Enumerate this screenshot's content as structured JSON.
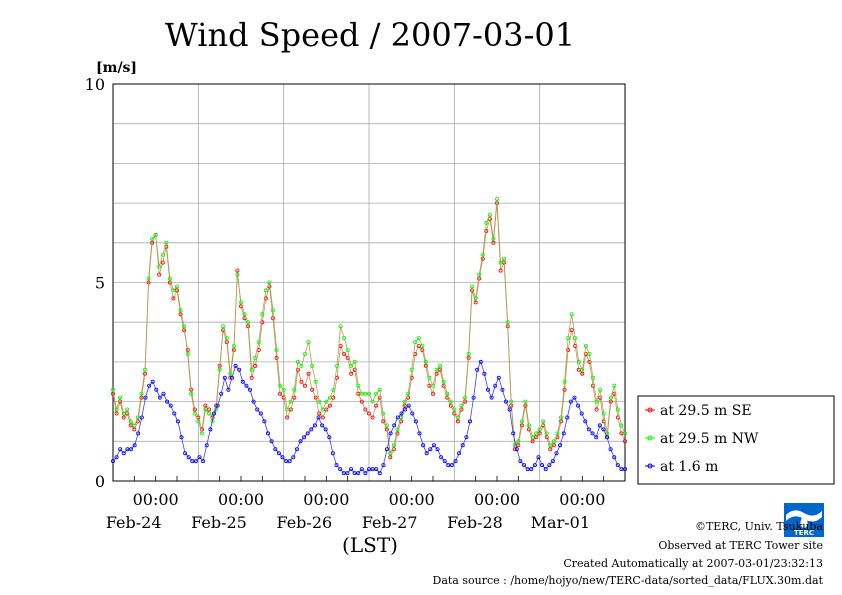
{
  "chart_data": {
    "type": "line",
    "title": "Wind Speed / 2007-03-01",
    "y_unit": "[m/s]",
    "xlabel": "(LST)",
    "ylim": [
      0,
      10
    ],
    "y_ticks": [
      0,
      5,
      10
    ],
    "xlim_hours": [
      0,
      144
    ],
    "x_ticks": [
      {
        "top": "00:00",
        "bottom": "Feb-24"
      },
      {
        "top": "00:00",
        "bottom": "Feb-25"
      },
      {
        "top": "00:00",
        "bottom": "Feb-26"
      },
      {
        "top": "00:00",
        "bottom": "Feb-27"
      },
      {
        "top": "00:00",
        "bottom": "Feb-28"
      },
      {
        "top": "00:00",
        "bottom": "Mar-01"
      }
    ],
    "grid": true,
    "legend_position": "right",
    "series": [
      {
        "name": "at 29.5 m SE",
        "color": "#ff0000",
        "values": [
          2.2,
          1.7,
          2.0,
          1.6,
          1.7,
          1.4,
          1.3,
          1.5,
          2.1,
          2.7,
          5.0,
          6.0,
          6.2,
          5.2,
          5.5,
          5.9,
          5.0,
          4.6,
          4.8,
          4.2,
          3.8,
          3.3,
          2.3,
          1.8,
          1.6,
          1.3,
          1.9,
          1.8,
          1.6,
          1.9,
          2.9,
          3.8,
          3.5,
          2.6,
          3.3,
          5.3,
          4.4,
          4.1,
          3.9,
          2.6,
          2.9,
          3.3,
          4.0,
          4.6,
          4.9,
          4.1,
          3.1,
          2.2,
          2.1,
          1.6,
          1.8,
          2.1,
          2.8,
          2.5,
          2.4,
          2.7,
          2.3,
          2.1,
          1.7,
          1.6,
          1.8,
          1.9,
          2.1,
          2.6,
          3.4,
          3.2,
          3.1,
          2.7,
          2.8,
          2.2,
          2.0,
          1.8,
          1.7,
          1.6,
          1.9,
          2.1,
          1.5,
          1.3,
          0.6,
          0.8,
          1.2,
          1.5,
          1.9,
          2.1,
          2.6,
          3.2,
          3.4,
          3.3,
          2.9,
          2.4,
          2.2,
          2.7,
          2.8,
          2.4,
          2.1,
          1.9,
          1.7,
          1.5,
          1.8,
          2.0,
          3.1,
          4.8,
          4.5,
          5.1,
          5.6,
          6.3,
          6.6,
          6.0,
          7.0,
          5.3,
          5.5,
          3.9,
          1.9,
          0.8,
          0.9,
          1.4,
          1.9,
          1.3,
          1.0,
          1.1,
          1.2,
          1.4,
          1.1,
          0.8,
          0.9,
          1.1,
          1.5,
          2.3,
          3.3,
          3.8,
          3.4,
          2.8,
          2.7,
          3.2,
          3.0,
          2.4,
          1.8,
          2.1,
          1.5,
          1.1,
          2.0,
          2.2,
          1.6,
          1.2,
          1.0
        ]
      },
      {
        "name": "at 29.5 m NW",
        "color": "#00ff00",
        "values": [
          2.3,
          1.8,
          2.1,
          1.7,
          1.8,
          1.5,
          1.4,
          1.6,
          2.2,
          2.8,
          5.1,
          6.1,
          6.2,
          5.4,
          5.7,
          6.0,
          5.1,
          4.8,
          4.9,
          4.3,
          3.9,
          3.2,
          2.2,
          1.7,
          1.5,
          1.2,
          1.8,
          1.7,
          1.5,
          1.8,
          2.8,
          3.9,
          3.6,
          2.7,
          3.4,
          5.2,
          4.5,
          4.2,
          4.0,
          2.8,
          3.1,
          3.5,
          4.2,
          4.8,
          5.0,
          4.3,
          3.3,
          2.4,
          2.3,
          1.8,
          2.0,
          2.3,
          3.0,
          2.9,
          3.2,
          3.5,
          2.9,
          2.5,
          2.0,
          1.8,
          2.0,
          2.1,
          2.3,
          2.9,
          3.9,
          3.6,
          3.3,
          2.9,
          3.0,
          2.4,
          2.2,
          2.2,
          2.2,
          2.0,
          2.2,
          2.3,
          1.7,
          1.4,
          0.7,
          0.9,
          1.3,
          1.6,
          2.0,
          2.2,
          2.8,
          3.5,
          3.6,
          3.4,
          3.0,
          2.6,
          2.4,
          2.8,
          2.9,
          2.5,
          2.2,
          2.0,
          1.8,
          1.6,
          1.9,
          2.1,
          3.2,
          4.9,
          4.6,
          5.2,
          5.7,
          6.5,
          6.7,
          6.1,
          7.1,
          5.5,
          5.6,
          4.0,
          2.0,
          0.9,
          1.0,
          1.5,
          2.0,
          1.4,
          1.1,
          1.2,
          1.3,
          1.5,
          1.2,
          0.9,
          1.0,
          1.2,
          1.6,
          2.5,
          3.6,
          4.2,
          3.6,
          3.0,
          2.8,
          3.4,
          3.2,
          2.6,
          2.0,
          2.3,
          1.7,
          1.2,
          2.1,
          2.4,
          1.8,
          1.4,
          1.2
        ]
      },
      {
        "name": "at 1.6 m",
        "color": "#0000ff",
        "values": [
          0.5,
          0.6,
          0.8,
          0.7,
          0.8,
          0.8,
          0.9,
          1.2,
          1.6,
          2.1,
          2.4,
          2.5,
          2.3,
          2.1,
          2.2,
          2.0,
          1.9,
          1.7,
          1.5,
          1.1,
          0.7,
          0.6,
          0.5,
          0.5,
          0.6,
          0.5,
          0.9,
          1.3,
          1.7,
          1.9,
          2.2,
          2.6,
          2.3,
          2.6,
          2.9,
          2.8,
          2.5,
          2.4,
          2.3,
          2.0,
          1.8,
          1.7,
          1.5,
          1.2,
          1.0,
          0.8,
          0.7,
          0.6,
          0.5,
          0.5,
          0.6,
          0.8,
          1.0,
          1.1,
          1.2,
          1.3,
          1.4,
          1.6,
          1.4,
          1.3,
          1.1,
          0.7,
          0.4,
          0.3,
          0.2,
          0.2,
          0.3,
          0.2,
          0.2,
          0.3,
          0.2,
          0.3,
          0.3,
          0.3,
          0.2,
          0.4,
          0.8,
          1.2,
          1.4,
          1.6,
          1.7,
          1.8,
          1.9,
          1.7,
          1.5,
          1.2,
          0.9,
          0.7,
          0.8,
          0.9,
          0.8,
          0.6,
          0.5,
          0.4,
          0.4,
          0.5,
          0.7,
          0.9,
          1.1,
          1.5,
          2.1,
          2.8,
          3.0,
          2.7,
          2.3,
          2.1,
          2.4,
          2.6,
          2.3,
          2.0,
          1.8,
          1.2,
          0.8,
          0.5,
          0.4,
          0.3,
          0.3,
          0.4,
          0.6,
          0.4,
          0.3,
          0.4,
          0.5,
          0.7,
          0.9,
          1.2,
          1.6,
          2.0,
          2.1,
          1.9,
          1.7,
          1.5,
          1.3,
          1.2,
          1.1,
          1.4,
          1.3,
          1.1,
          0.8,
          0.6,
          0.4,
          0.3,
          0.3
        ]
      }
    ]
  },
  "footer": {
    "copyright": "©TERC, Univ. Tsukuba",
    "site": "Observed at TERC Tower site",
    "created": "Created Automatically at 2007-03-01/23:32:13",
    "source": "Data source : /home/hojyo/new/TERC-data/sorted_data/FLUX.30m.dat",
    "logo_text": "TERC",
    "logo_color": "#0066cc"
  }
}
